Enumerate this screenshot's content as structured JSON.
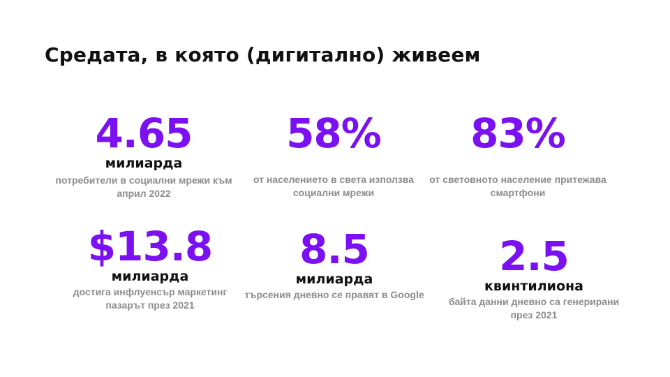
{
  "title": "Средата, в която (дигитално) живеем",
  "stats": [
    {
      "value": "4.65",
      "unit": "милиарда",
      "desc": "потребители в социални мрежи към април 2022"
    },
    {
      "value": "58%",
      "unit": "",
      "desc": "от населението в света използва социални мрежи"
    },
    {
      "value": "83%",
      "unit": "",
      "desc": "от световното население притежава смартфони"
    },
    {
      "value": "$13.8",
      "unit": "милиарда",
      "desc": "достига инфлуенсър маркетинг пазарът през 2021"
    },
    {
      "value": "8.5",
      "unit": "милиарда",
      "desc": "търсения дневно се правят в Google"
    },
    {
      "value": "2.5",
      "unit": "квинтилиона",
      "desc": "байта данни дневно са генерирани през 2021"
    }
  ],
  "colors": {
    "accent": "#7b10f2",
    "text": "#111111",
    "muted": "#8c8c8c"
  }
}
